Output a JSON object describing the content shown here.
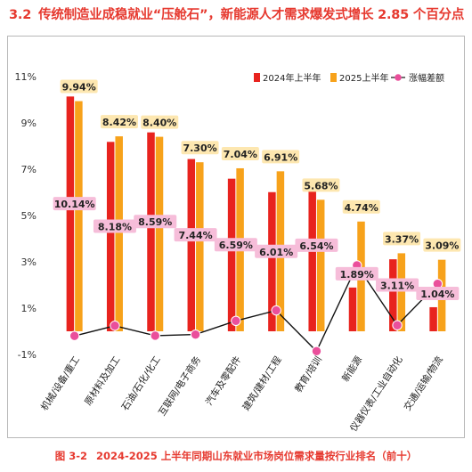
{
  "section": {
    "number": "3.2",
    "title": "传统制造业成稳就业“压舱石”，新能源人才需求爆发式增长 2.85 个百分点"
  },
  "caption": {
    "figure": "图 3-2",
    "text": "2024-2025 上半年同期山东就业市场岗位需求量按行业排名（前十）"
  },
  "colors": {
    "series_2024": "#e8231e",
    "series_2025": "#f7a21b",
    "diff_line": "#111111",
    "diff_marker": "#ea4f9b",
    "diff_label_bg": "#f6bdd9",
    "value_label_bg": "#fde7b0",
    "title": "#e6392f"
  },
  "chart_data": {
    "type": "bar",
    "categories": [
      "机械/设备/重工",
      "原材料及加工",
      "石油/石化/化工",
      "互联网/电子商务",
      "汽车及零配件",
      "建筑/建材/工程",
      "教育/培训",
      "新能源",
      "仪器仪表/工业自动化",
      "交通/运输/物流"
    ],
    "series": [
      {
        "name": "2024年上半年",
        "values": [
          10.14,
          8.18,
          8.59,
          7.44,
          6.59,
          6.01,
          6.54,
          1.89,
          3.11,
          1.04
        ]
      },
      {
        "name": "2025上半年",
        "values": [
          9.94,
          8.42,
          8.4,
          7.3,
          7.04,
          6.91,
          5.68,
          4.74,
          3.37,
          3.09
        ]
      },
      {
        "name": "涨幅差额",
        "type": "line",
        "values": [
          -0.2,
          0.24,
          -0.19,
          -0.14,
          0.45,
          0.9,
          -0.86,
          2.85,
          0.26,
          2.05
        ]
      }
    ],
    "series_2024_labels": [
      "10.14%",
      "8.18%",
      "8.59%",
      "7.44%",
      "6.59%",
      "6.01%",
      "6.54%",
      "1.89%",
      "3.11%",
      "1.04%"
    ],
    "series_2025_labels": [
      "9.94%",
      "8.42%",
      "8.40%",
      "7.30%",
      "7.04%",
      "6.91%",
      "5.68%",
      "4.74%",
      "3.37%",
      "3.09%"
    ],
    "yticks": [
      "11%",
      "9%",
      "7%",
      "5%",
      "3%",
      "1%",
      "-1%"
    ],
    "ylim": [
      -1,
      11
    ],
    "grid": false,
    "legend": "top-right"
  }
}
